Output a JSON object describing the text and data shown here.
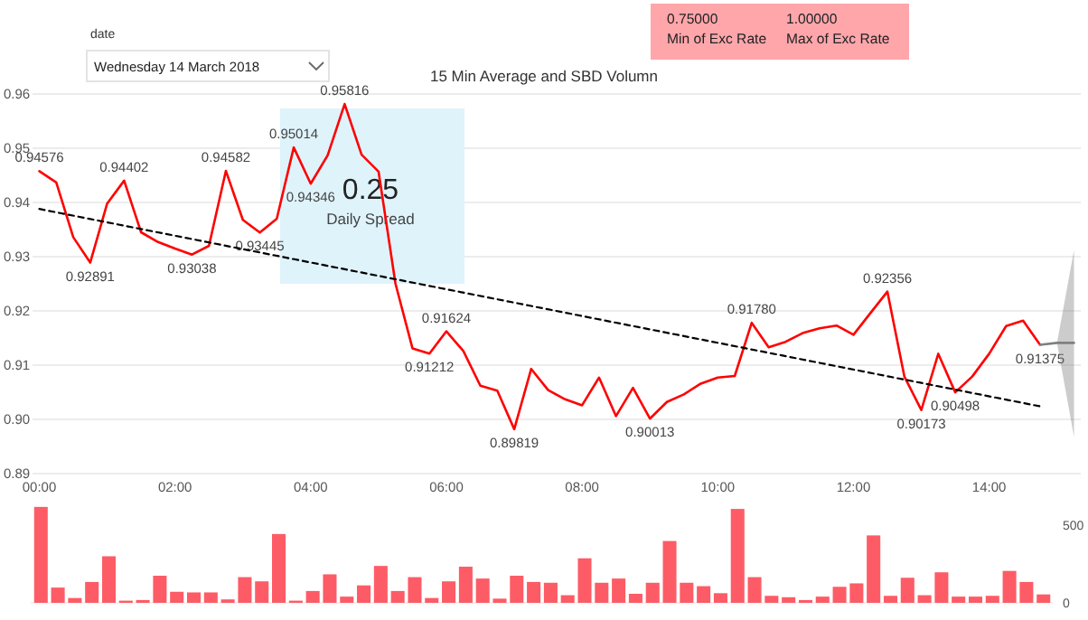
{
  "chart_data": [
    {
      "type": "other",
      "title": "date",
      "annotations": [
        "Wednesday 14 March 2018"
      ]
    },
    {
      "type": "other",
      "annotations": [
        "0.75000",
        "Min of Exc Rate",
        "1.00000",
        "Max of Exc Rate"
      ]
    },
    {
      "type": "line",
      "title": "15 Min Average and SBD Volumn",
      "xlim": [
        -0.1,
        15.35
      ],
      "xticks": [
        {
          "value": 0,
          "label": "00:00"
        },
        {
          "value": 2,
          "label": "02:00"
        },
        {
          "value": 4,
          "label": "04:00"
        },
        {
          "value": 6,
          "label": "06:00"
        },
        {
          "value": 8,
          "label": "08:00"
        },
        {
          "value": 10,
          "label": "10:00"
        },
        {
          "value": 12,
          "label": "12:00"
        },
        {
          "value": 14,
          "label": "14:00"
        }
      ],
      "ylim": [
        0.89,
        0.96
      ],
      "yticks": [
        0.89,
        {
          "value": 0.9,
          "label": "0.90"
        },
        0.91,
        0.92,
        0.93,
        0.94,
        0.95,
        0.96
      ],
      "grid": "y",
      "annotations": [
        "0.25",
        "Daily Spread"
      ],
      "series": [
        {
          "color": "#ff0000",
          "x": [
            0,
            0.25,
            0.5,
            0.75,
            1,
            1.25,
            1.5,
            1.75,
            2,
            2.25,
            2.5,
            2.75,
            3,
            3.25,
            3.5,
            3.75,
            4,
            4.25,
            4.5,
            4.75,
            5,
            5.25,
            5.5,
            5.75,
            6,
            6.25,
            6.5,
            6.75,
            7,
            7.25,
            7.5,
            7.75,
            8,
            8.25,
            8.5,
            8.75,
            9,
            9.25,
            9.5,
            9.75,
            10,
            10.25,
            10.5,
            10.75,
            11,
            11.25,
            11.5,
            11.75,
            12,
            12.25,
            12.5,
            12.75,
            13,
            13.25,
            13.5,
            13.75,
            14,
            14.25,
            14.5,
            14.75
          ],
          "values": [
            0.94576,
            0.9437,
            0.9336,
            0.92891,
            0.9398,
            0.94402,
            0.9345,
            0.9327,
            0.9315,
            0.93038,
            0.932,
            0.94582,
            0.9368,
            0.93445,
            0.937,
            0.95014,
            0.94346,
            0.9487,
            0.95816,
            0.9488,
            0.9457,
            0.925,
            0.9131,
            0.91212,
            0.91624,
            0.9126,
            0.9062,
            0.9053,
            0.89819,
            0.9093,
            0.9054,
            0.9037,
            0.9026,
            0.9077,
            0.9006,
            0.9058,
            0.90013,
            0.9032,
            0.9046,
            0.9066,
            0.9077,
            0.908,
            0.9178,
            0.9133,
            0.9143,
            0.9159,
            0.9168,
            0.9173,
            0.9156,
            0.9196,
            0.92356,
            0.9079,
            0.90173,
            0.9121,
            0.90498,
            0.9079,
            0.9121,
            0.9172,
            0.9182,
            0.91375
          ],
          "value_labels": [
            "0.94576",
            null,
            null,
            "0.92891",
            null,
            "0.94402",
            null,
            null,
            null,
            "0.93038",
            null,
            "0.94582",
            null,
            "0.93445",
            null,
            "0.95014",
            "0.94346",
            null,
            "0.95816",
            null,
            null,
            null,
            null,
            "0.91212",
            "0.91624",
            null,
            null,
            null,
            "0.89819",
            null,
            null,
            null,
            null,
            null,
            null,
            null,
            "0.90013",
            null,
            null,
            null,
            null,
            null,
            "0.91780",
            null,
            null,
            null,
            null,
            null,
            null,
            null,
            "0.92356",
            null,
            "0.90173",
            null,
            "0.90498",
            null,
            null,
            null,
            null,
            "0.91375"
          ]
        },
        {
          "color": "#808080",
          "x": [
            14.75,
            15,
            15.25
          ],
          "values": [
            0.91375,
            0.9141,
            0.9141
          ],
          "lower": [
            0.91375,
            0.9141,
            0.8968
          ],
          "upper": [
            0.91375,
            0.9141,
            0.9312
          ]
        },
        {
          "color": "#000000",
          "line_style": "dashed",
          "x": [
            0,
            14.75
          ],
          "values": [
            0.9388,
            0.9024
          ]
        }
      ]
    },
    {
      "type": "bar",
      "categories": [
        null,
        null,
        null,
        null,
        null,
        null,
        null,
        null,
        null,
        null,
        null,
        null,
        null,
        null,
        null,
        null,
        null,
        null,
        null,
        null,
        null,
        null,
        null,
        null,
        null,
        null,
        null,
        null,
        null,
        null,
        null,
        null,
        null,
        null,
        null,
        null,
        null,
        null,
        null,
        null,
        null,
        null,
        null,
        null,
        null,
        null,
        null,
        null,
        null,
        null,
        null,
        null,
        null,
        null,
        null,
        null,
        null,
        null,
        null,
        null
      ],
      "values": [
        616,
        98,
        31,
        134,
        299,
        14,
        18,
        174,
        71,
        67,
        67,
        22,
        165,
        138,
        442,
        14,
        76,
        183,
        40,
        112,
        237,
        76,
        165,
        31,
        138,
        232,
        156,
        27,
        174,
        134,
        129,
        49,
        286,
        129,
        156,
        58,
        129,
        397,
        129,
        107,
        62,
        603,
        165,
        45,
        36,
        18,
        40,
        103,
        125,
        433,
        45,
        161,
        49,
        196,
        40,
        40,
        45,
        205,
        134,
        54
      ],
      "color": "#fd5c66",
      "ylim": [
        0,
        650
      ],
      "yticks": [
        0,
        500
      ],
      "tick_labels": "y",
      "grid": false
    }
  ]
}
